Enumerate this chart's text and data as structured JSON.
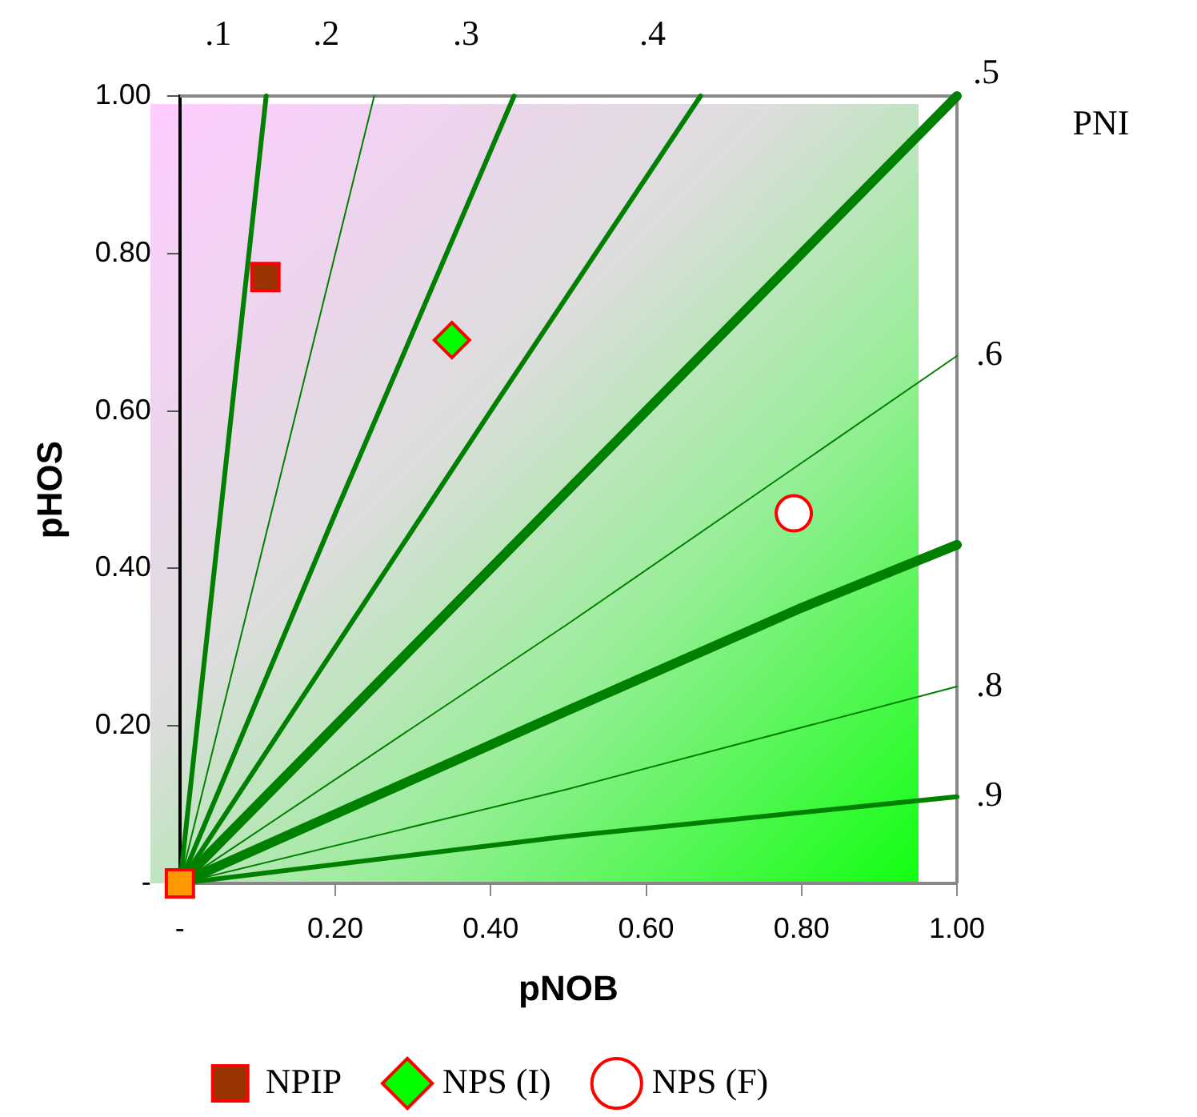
{
  "chart_data": {
    "type": "line",
    "xlabel": "pNOB",
    "ylabel": "pHOS",
    "xlim": [
      0,
      1
    ],
    "ylim": [
      0,
      1
    ],
    "xticks": [
      {
        "value": 0,
        "label": "-"
      },
      {
        "value": 0.2,
        "label": "0.20"
      },
      {
        "value": 0.4,
        "label": "0.40"
      },
      {
        "value": 0.6,
        "label": "0.60"
      },
      {
        "value": 0.8,
        "label": "0.80"
      },
      {
        "value": 1,
        "label": "1.00"
      }
    ],
    "yticks": [
      {
        "value": 0,
        "label": "-"
      },
      {
        "value": 0.2,
        "label": "0.20"
      },
      {
        "value": 0.4,
        "label": "0.40"
      },
      {
        "value": 0.6,
        "label": "0.60"
      },
      {
        "value": 0.8,
        "label": "0.80"
      },
      {
        "value": 1,
        "label": "1.00"
      }
    ],
    "grid": false,
    "legend": "bottom",
    "annotations": [
      "PNI"
    ],
    "series": [
      {
        "name": ".1",
        "color": "#008000",
        "x": [
          0,
          0.05,
          0.111
        ],
        "values": [
          0,
          0.45,
          1
        ]
      },
      {
        "name": ".2",
        "color": "#008000",
        "x": [
          0,
          0.1,
          0.25
        ],
        "values": [
          0,
          0.4,
          1
        ]
      },
      {
        "name": ".3",
        "color": "#008000",
        "x": [
          0,
          0.2,
          0.43
        ],
        "values": [
          0,
          0.47,
          1
        ]
      },
      {
        "name": ".4",
        "color": "#008000",
        "x": [
          0,
          0.2,
          0.4,
          0.67
        ],
        "values": [
          0,
          0.3,
          0.6,
          1
        ]
      },
      {
        "name": ".5",
        "color": "#008000",
        "x": [
          0,
          0.5,
          1
        ],
        "values": [
          0,
          0.5,
          1
        ]
      },
      {
        "name": ".6",
        "color": "#008000",
        "x": [
          0,
          0.5,
          1
        ],
        "values": [
          0,
          0.33,
          0.67
        ]
      },
      {
        "color": "#008000",
        "x": [
          0,
          0.5,
          0.8,
          1
        ],
        "values": [
          0,
          0.22,
          0.35,
          0.43
        ]
      },
      {
        "name": ".8",
        "color": "#008000",
        "x": [
          0,
          0.5,
          1
        ],
        "values": [
          0,
          0.12,
          0.25
        ]
      },
      {
        "name": ".9",
        "color": "#008000",
        "x": [
          0,
          0.5,
          1
        ],
        "values": [
          0,
          0.06,
          0.11
        ]
      },
      {
        "type": "scatter",
        "color": "#ff9900",
        "marker": "square",
        "x": [
          0
        ],
        "values": [
          0
        ]
      },
      {
        "type": "scatter",
        "name": "NPIP",
        "color": "#993300",
        "marker": "square",
        "x": [
          0.11
        ],
        "values": [
          0.77
        ]
      },
      {
        "type": "scatter",
        "name": "NPS (I)",
        "color": "#00ff00",
        "marker": "diamond",
        "x": [
          0.35
        ],
        "values": [
          0.69
        ]
      },
      {
        "type": "scatter",
        "name": "NPS (F)",
        "color": "#ffffff",
        "marker": "circle",
        "x": [
          0.79
        ],
        "values": [
          0.47
        ]
      }
    ]
  }
}
